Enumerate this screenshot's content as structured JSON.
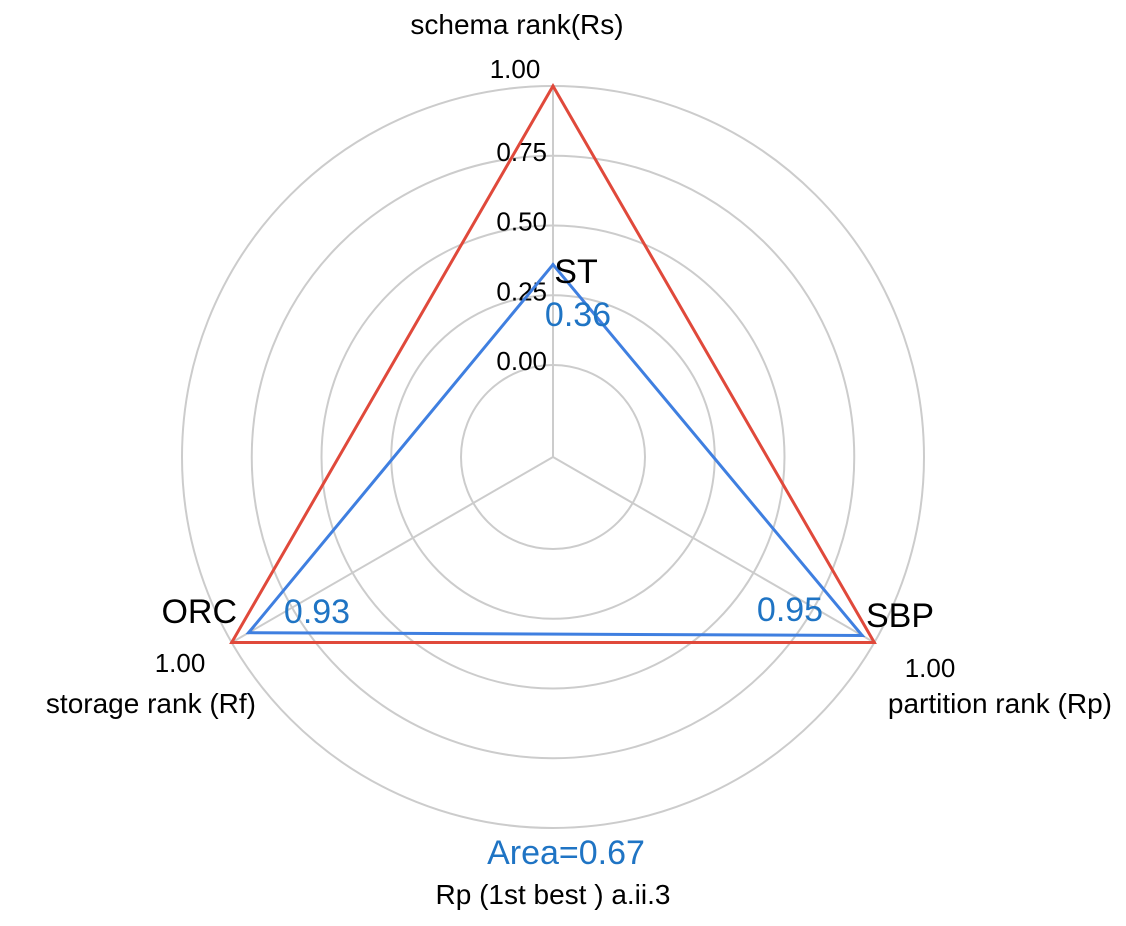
{
  "chart_data": {
    "type": "radar",
    "axes": [
      {
        "label": "schema rank(Rs)",
        "max_label": "1.00",
        "vertex_name": "ST"
      },
      {
        "label": "partition rank (Rp)",
        "max_label": "1.00",
        "vertex_name": "SBP"
      },
      {
        "label": "storage rank (Rf)",
        "max_label": "1.00",
        "vertex_name": "ORC"
      }
    ],
    "rlim": [
      0,
      1
    ],
    "ticks": [
      "0.00",
      "0.25",
      "0.50",
      "0.75"
    ],
    "series": [
      {
        "values": [
          1.0,
          1.0,
          1.0
        ],
        "color": "#e0493b"
      },
      {
        "values": [
          0.36,
          0.95,
          0.93
        ],
        "value_labels": [
          "0.36",
          "0.95",
          "0.93"
        ],
        "color": "#3f7fe0",
        "label_color": "#1f74c4"
      }
    ],
    "area_label": "Area=0.67",
    "caption": "Rp (1st best ) a.ii.3",
    "grid": true,
    "grid_color": "#cccccc"
  }
}
